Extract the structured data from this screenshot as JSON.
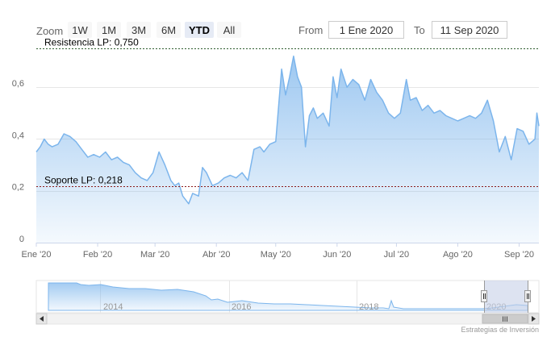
{
  "range_selector": {
    "zoom_label": "Zoom",
    "buttons": [
      "1W",
      "1M",
      "3M",
      "6M",
      "YTD",
      "All"
    ],
    "selected": "YTD",
    "from_label": "From",
    "from_value": "1 Ene 2020",
    "to_label": "To",
    "to_value": "11 Sep 2020"
  },
  "credits": "Estrategias de Inversión",
  "navigator": {
    "labels": [
      "2014",
      "2016",
      "2018",
      "2020"
    ],
    "scroll_glyph": "III"
  },
  "colors": {
    "series_line": "#7cb5ec",
    "resistance_line": "#2e5d2e",
    "support_line": "#8b1a1a",
    "navigator_mask": "#c7d0e8"
  },
  "chart_data": {
    "type": "area",
    "title": "",
    "xlabel": "",
    "ylabel": "",
    "ylim": [
      0,
      0.75
    ],
    "yticks": [
      0,
      0.2,
      0.4,
      0.6
    ],
    "ytick_labels": [
      "0",
      "0,2",
      "0,4",
      "0,6"
    ],
    "xlim": [
      "2020-01-01",
      "2020-09-11"
    ],
    "xticks": [
      "2020-01-01",
      "2020-02-01",
      "2020-03-01",
      "2020-04-01",
      "2020-05-01",
      "2020-06-01",
      "2020-07-01",
      "2020-08-01",
      "2020-09-01"
    ],
    "xtick_labels": [
      "Ene '20",
      "Feb '20",
      "Mar '20",
      "Abr '20",
      "May '20",
      "Jun '20",
      "Jul '20",
      "Ago '20",
      "Sep '20"
    ],
    "grid": "horizontal",
    "legend": "none",
    "plotlines": [
      {
        "label": "Resistencia LP: 0,750",
        "value": 0.75
      },
      {
        "label": "Soporte LP: 0,218",
        "value": 0.218
      }
    ],
    "series": [
      {
        "x": [
          "2020-01-01",
          "2020-01-03",
          "2020-01-05",
          "2020-01-07",
          "2020-01-09",
          "2020-01-12",
          "2020-01-15",
          "2020-01-18",
          "2020-01-21",
          "2020-01-24",
          "2020-01-27",
          "2020-01-30",
          "2020-02-02",
          "2020-02-05",
          "2020-02-08",
          "2020-02-11",
          "2020-02-14",
          "2020-02-17",
          "2020-02-20",
          "2020-02-23",
          "2020-02-26",
          "2020-02-29",
          "2020-03-03",
          "2020-03-06",
          "2020-03-09",
          "2020-03-11",
          "2020-03-13",
          "2020-03-15",
          "2020-03-16",
          "2020-03-18",
          "2020-03-20",
          "2020-03-23",
          "2020-03-25",
          "2020-03-27",
          "2020-03-30",
          "2020-04-02",
          "2020-04-05",
          "2020-04-08",
          "2020-04-11",
          "2020-04-14",
          "2020-04-17",
          "2020-04-20",
          "2020-04-23",
          "2020-04-25",
          "2020-04-28",
          "2020-05-01",
          "2020-05-04",
          "2020-05-06",
          "2020-05-08",
          "2020-05-10",
          "2020-05-12",
          "2020-05-14",
          "2020-05-16",
          "2020-05-18",
          "2020-05-20",
          "2020-05-22",
          "2020-05-25",
          "2020-05-28",
          "2020-05-30",
          "2020-06-01",
          "2020-06-03",
          "2020-06-06",
          "2020-06-09",
          "2020-06-12",
          "2020-06-15",
          "2020-06-18",
          "2020-06-21",
          "2020-06-24",
          "2020-06-27",
          "2020-06-30",
          "2020-07-03",
          "2020-07-06",
          "2020-07-08",
          "2020-07-11",
          "2020-07-14",
          "2020-07-17",
          "2020-07-20",
          "2020-07-23",
          "2020-07-26",
          "2020-07-29",
          "2020-08-01",
          "2020-08-04",
          "2020-08-07",
          "2020-08-10",
          "2020-08-13",
          "2020-08-16",
          "2020-08-19",
          "2020-08-22",
          "2020-08-25",
          "2020-08-28",
          "2020-08-31",
          "2020-09-03",
          "2020-09-06",
          "2020-09-09",
          "2020-09-10",
          "2020-09-11"
        ],
        "y": [
          0.35,
          0.37,
          0.4,
          0.38,
          0.37,
          0.38,
          0.42,
          0.41,
          0.39,
          0.36,
          0.33,
          0.34,
          0.33,
          0.35,
          0.32,
          0.33,
          0.31,
          0.3,
          0.27,
          0.25,
          0.24,
          0.27,
          0.35,
          0.3,
          0.24,
          0.22,
          0.23,
          0.18,
          0.17,
          0.15,
          0.19,
          0.18,
          0.29,
          0.27,
          0.22,
          0.23,
          0.25,
          0.26,
          0.25,
          0.27,
          0.24,
          0.36,
          0.37,
          0.35,
          0.38,
          0.39,
          0.67,
          0.57,
          0.64,
          0.72,
          0.64,
          0.6,
          0.37,
          0.49,
          0.52,
          0.48,
          0.5,
          0.45,
          0.64,
          0.56,
          0.67,
          0.6,
          0.63,
          0.61,
          0.55,
          0.63,
          0.58,
          0.55,
          0.5,
          0.48,
          0.5,
          0.63,
          0.55,
          0.56,
          0.51,
          0.53,
          0.5,
          0.51,
          0.49,
          0.48,
          0.47,
          0.48,
          0.49,
          0.48,
          0.5,
          0.55,
          0.47,
          0.35,
          0.41,
          0.32,
          0.44,
          0.43,
          0.38,
          0.4,
          0.5,
          0.45
        ]
      }
    ]
  }
}
